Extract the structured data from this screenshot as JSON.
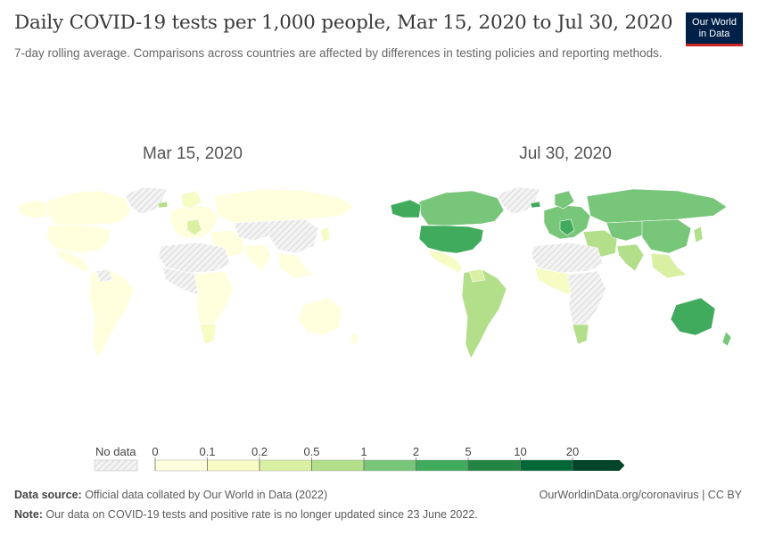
{
  "header": {
    "title": "Daily COVID-19 tests per 1,000 people, Mar 15, 2020 to Jul 30, 2020",
    "subtitle": "7-day rolling average. Comparisons across countries are affected by differences in testing policies and reporting methods."
  },
  "logo": {
    "line1": "Our World",
    "line2": "in Data",
    "bg_color": "#002147",
    "accent_color": "#ce261e"
  },
  "maps": [
    {
      "date_label": "Mar 15, 2020"
    },
    {
      "date_label": "Jul 30, 2020"
    }
  ],
  "legend": {
    "no_data_label": "No data",
    "ticks": [
      "0",
      "0.1",
      "0.2",
      "0.5",
      "1",
      "2",
      "5",
      "10",
      "20"
    ],
    "bin_colors": [
      "#ffffde",
      "#f7fbc4",
      "#d9f0a3",
      "#b3de8a",
      "#78c679",
      "#41ab5d",
      "#238443",
      "#006837",
      "#004529"
    ]
  },
  "footer": {
    "source_label": "Data source:",
    "source_text": " Official data collated by Our World in Data (2022)",
    "url_text": "OurWorldinData.org/coronavirus | CC BY",
    "note_label": "Note:",
    "note_text": " Our data on COVID-19 tests and positive rate is no longer updated since 23 June 2022."
  }
}
